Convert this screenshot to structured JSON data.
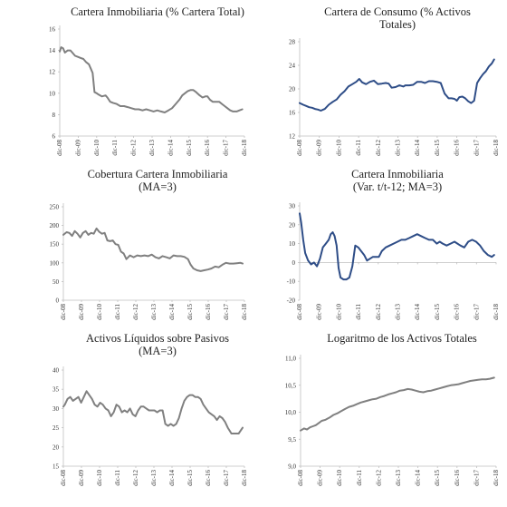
{
  "chart_data": [
    {
      "type": "line",
      "title": [
        "Cartera Inmobiliaria (% Cartera Total)"
      ],
      "x_labels": [
        "dic-08",
        "dic-09",
        "dic-10",
        "dic-11",
        "dic-12",
        "dic-13",
        "dic-14",
        "dic-15",
        "dic-16",
        "dic-17",
        "dic-18"
      ],
      "y_ticks": [
        "6",
        "8",
        "10",
        "12",
        "14",
        "16"
      ],
      "ylim": [
        6,
        16
      ],
      "color": "#808080",
      "series": [
        {
          "x": [
            2008.92,
            2009.0,
            2009.1,
            2009.2,
            2009.35,
            2009.5,
            2009.6,
            2009.75,
            2009.9,
            2010.05,
            2010.2,
            2010.35,
            2010.5,
            2010.6,
            2010.7,
            2010.8,
            2010.92,
            2011.0,
            2011.2,
            2011.4,
            2011.5,
            2011.65,
            2011.8,
            2012.0,
            2012.2,
            2012.4,
            2012.6,
            2012.8,
            2013.0,
            2013.2,
            2013.4,
            2013.6,
            2013.8,
            2014.0,
            2014.2,
            2014.4,
            2014.6,
            2014.8,
            2015.0,
            2015.2,
            2015.4,
            2015.55,
            2015.7,
            2015.85,
            2016.0,
            2016.15,
            2016.3,
            2016.5,
            2016.65,
            2016.8,
            2016.92,
            2017.05,
            2017.2,
            2017.4,
            2017.55,
            2017.7,
            2017.85,
            2018.0,
            2018.15,
            2018.3,
            2018.5,
            2018.65,
            2018.8
          ],
          "y": [
            13.9,
            14.3,
            14.2,
            13.8,
            14.0,
            14.0,
            13.8,
            13.5,
            13.4,
            13.3,
            13.2,
            12.9,
            12.7,
            12.3,
            11.9,
            10.1,
            10.0,
            9.9,
            9.7,
            9.8,
            9.6,
            9.2,
            9.1,
            9.0,
            8.8,
            8.8,
            8.7,
            8.6,
            8.5,
            8.5,
            8.4,
            8.5,
            8.4,
            8.3,
            8.4,
            8.3,
            8.2,
            8.4,
            8.6,
            9.0,
            9.4,
            9.8,
            10.0,
            10.2,
            10.3,
            10.3,
            10.1,
            9.8,
            9.6,
            9.7,
            9.7,
            9.4,
            9.2,
            9.2,
            9.2,
            9.0,
            8.8,
            8.6,
            8.4,
            8.3,
            8.3,
            8.4,
            8.5
          ]
        }
      ]
    },
    {
      "type": "line",
      "title": [
        "Cartera de Consumo (% Activos",
        "Totales)"
      ],
      "x_labels": [
        "dic-08",
        "dic-09",
        "dic-10",
        "dic-11",
        "dic-12",
        "dic-13",
        "dic-14",
        "dic-15",
        "dic-16",
        "dic-17",
        "dic-18"
      ],
      "y_ticks": [
        "12",
        "16",
        "20",
        "24",
        "28"
      ],
      "ylim": [
        12,
        28
      ],
      "color": "#2e4d87",
      "series": [
        {
          "x": [
            2008.92,
            2009.1,
            2009.25,
            2009.4,
            2009.55,
            2009.7,
            2009.85,
            2010.0,
            2010.2,
            2010.4,
            2010.6,
            2010.8,
            2011.0,
            2011.2,
            2011.4,
            2011.6,
            2011.8,
            2011.95,
            2012.1,
            2012.3,
            2012.5,
            2012.7,
            2012.9,
            2013.1,
            2013.3,
            2013.45,
            2013.6,
            2013.8,
            2014.0,
            2014.2,
            2014.3,
            2014.5,
            2014.7,
            2014.9,
            2015.1,
            2015.3,
            2015.5,
            2015.7,
            2015.9,
            2016.1,
            2016.3,
            2016.5,
            2016.65,
            2016.8,
            2016.92,
            2017.05,
            2017.2,
            2017.35,
            2017.5,
            2017.65,
            2017.8,
            2017.95,
            2018.1,
            2018.25,
            2018.4,
            2018.55,
            2018.7,
            2018.82
          ],
          "y": [
            17.6,
            17.3,
            17.1,
            16.9,
            16.8,
            16.6,
            16.5,
            16.3,
            16.6,
            17.3,
            17.8,
            18.2,
            19.0,
            19.6,
            20.4,
            20.8,
            21.2,
            21.7,
            21.1,
            20.8,
            21.2,
            21.4,
            20.8,
            20.9,
            21.0,
            20.9,
            20.2,
            20.3,
            20.6,
            20.4,
            20.6,
            20.6,
            20.7,
            21.2,
            21.2,
            21.0,
            21.3,
            21.3,
            21.2,
            21.0,
            19.2,
            18.4,
            18.4,
            18.3,
            18.0,
            18.6,
            18.7,
            18.4,
            17.9,
            17.6,
            18.0,
            21.0,
            21.8,
            22.5,
            23.0,
            23.8,
            24.3,
            25.0
          ]
        }
      ]
    },
    {
      "type": "line",
      "title": [
        "Cobertura Cartera Inmobiliaria",
        "(MA=3)"
      ],
      "x_labels": [
        "dic-08",
        "dic-09",
        "dic-10",
        "dic-11",
        "dic-12",
        "dic-13",
        "dic-14",
        "dic-15",
        "dic-16",
        "dic-17",
        "dic-18"
      ],
      "y_ticks": [
        "0",
        "50",
        "100",
        "150",
        "200",
        "250"
      ],
      "ylim": [
        0,
        250
      ],
      "color": "#808080",
      "series": [
        {
          "x": [
            2008.92,
            2009.1,
            2009.25,
            2009.4,
            2009.55,
            2009.7,
            2009.85,
            2010.0,
            2010.15,
            2010.3,
            2010.45,
            2010.6,
            2010.75,
            2010.9,
            2011.05,
            2011.2,
            2011.35,
            2011.5,
            2011.65,
            2011.8,
            2011.95,
            2012.1,
            2012.25,
            2012.4,
            2012.6,
            2012.8,
            2013.0,
            2013.2,
            2013.4,
            2013.6,
            2013.8,
            2014.0,
            2014.2,
            2014.4,
            2014.6,
            2014.8,
            2015.0,
            2015.2,
            2015.4,
            2015.6,
            2015.8,
            2015.95,
            2016.1,
            2016.3,
            2016.5,
            2016.7,
            2016.9,
            2017.1,
            2017.3,
            2017.5,
            2017.7,
            2017.9,
            2018.1,
            2018.3,
            2018.5,
            2018.7,
            2018.82
          ],
          "y": [
            175,
            182,
            180,
            172,
            185,
            178,
            168,
            180,
            185,
            175,
            180,
            178,
            192,
            183,
            178,
            180,
            160,
            158,
            160,
            150,
            148,
            130,
            125,
            110,
            120,
            115,
            120,
            118,
            120,
            118,
            122,
            115,
            112,
            118,
            115,
            112,
            120,
            118,
            118,
            116,
            110,
            95,
            85,
            80,
            78,
            80,
            82,
            85,
            90,
            88,
            95,
            100,
            98,
            98,
            99,
            100,
            98
          ]
        }
      ]
    },
    {
      "type": "line",
      "title": [
        "Cartera Inmobiliaria",
        "(Var. t/t-12; MA=3)"
      ],
      "x_labels": [
        "dic-08",
        "dic-09",
        "dic-10",
        "dic-11",
        "dic-12",
        "dic-13",
        "dic-14",
        "dic-15",
        "dic-16",
        "dic-17",
        "dic-18"
      ],
      "y_ticks": [
        "-20",
        "-10",
        "0",
        "10",
        "20",
        "30"
      ],
      "ylim": [
        -20,
        30
      ],
      "color": "#2e4d87",
      "series": [
        {
          "x": [
            2008.92,
            2009.0,
            2009.1,
            2009.2,
            2009.35,
            2009.5,
            2009.65,
            2009.8,
            2009.95,
            2010.1,
            2010.25,
            2010.4,
            2010.5,
            2010.6,
            2010.7,
            2010.8,
            2010.9,
            2011.0,
            2011.15,
            2011.3,
            2011.45,
            2011.6,
            2011.75,
            2011.9,
            2012.05,
            2012.2,
            2012.35,
            2012.5,
            2012.65,
            2012.8,
            2012.95,
            2013.1,
            2013.3,
            2013.5,
            2013.7,
            2013.9,
            2014.1,
            2014.3,
            2014.5,
            2014.7,
            2014.9,
            2015.1,
            2015.3,
            2015.5,
            2015.7,
            2015.9,
            2016.05,
            2016.2,
            2016.4,
            2016.6,
            2016.8,
            2016.95,
            2017.1,
            2017.3,
            2017.5,
            2017.7,
            2017.9,
            2018.1,
            2018.3,
            2018.5,
            2018.7,
            2018.82
          ],
          "y": [
            26,
            21,
            12,
            5,
            1,
            -1,
            0,
            -2,
            2,
            8,
            10,
            12,
            15,
            16,
            14,
            9,
            -3,
            -8,
            -9,
            -9,
            -8,
            -2,
            9,
            8,
            6,
            4,
            1,
            2,
            3,
            3,
            3,
            6,
            8,
            9,
            10,
            11,
            12,
            12,
            13,
            14,
            15,
            14,
            13,
            12,
            12,
            10,
            11,
            10,
            9,
            10,
            11,
            10,
            9,
            8,
            11,
            12,
            11,
            9,
            6,
            4,
            3,
            4
          ]
        }
      ]
    },
    {
      "type": "line",
      "title": [
        "Activos Líquidos sobre Pasivos",
        "(MA=3)"
      ],
      "x_labels": [
        "dic-08",
        "dic-09",
        "dic-10",
        "dic-11",
        "dic-12",
        "dic-13",
        "dic-14",
        "dic-15",
        "dic-16",
        "dic-17",
        "dic-18"
      ],
      "y_ticks": [
        "15",
        "20",
        "25",
        "30",
        "35",
        "40"
      ],
      "ylim": [
        15,
        40
      ],
      "color": "#808080",
      "series": [
        {
          "x": [
            2008.92,
            2009.0,
            2009.15,
            2009.3,
            2009.45,
            2009.6,
            2009.75,
            2009.9,
            2010.05,
            2010.2,
            2010.35,
            2010.5,
            2010.65,
            2010.8,
            2010.95,
            2011.1,
            2011.25,
            2011.4,
            2011.55,
            2011.7,
            2011.85,
            2012.0,
            2012.15,
            2012.3,
            2012.45,
            2012.6,
            2012.75,
            2012.9,
            2013.05,
            2013.2,
            2013.35,
            2013.5,
            2013.65,
            2013.8,
            2013.95,
            2014.1,
            2014.25,
            2014.4,
            2014.55,
            2014.7,
            2014.85,
            2015.0,
            2015.15,
            2015.3,
            2015.45,
            2015.6,
            2015.75,
            2015.9,
            2016.05,
            2016.2,
            2016.35,
            2016.5,
            2016.65,
            2016.8,
            2016.95,
            2017.1,
            2017.25,
            2017.4,
            2017.55,
            2017.7,
            2017.85,
            2018.0,
            2018.2,
            2018.4,
            2018.6,
            2018.82
          ],
          "y": [
            30.5,
            31.0,
            32.5,
            33.0,
            32.0,
            32.5,
            33.0,
            31.5,
            33.0,
            34.5,
            33.5,
            32.5,
            31.0,
            30.5,
            31.5,
            31.0,
            30.0,
            29.5,
            28.0,
            29.0,
            31.0,
            30.5,
            29.0,
            29.5,
            29.0,
            30.0,
            28.5,
            28.0,
            29.5,
            30.5,
            30.5,
            30.0,
            29.5,
            29.5,
            29.5,
            29.0,
            29.5,
            29.5,
            26.0,
            25.5,
            26.0,
            25.5,
            26.0,
            27.5,
            30.0,
            32.0,
            33.0,
            33.5,
            33.5,
            33.0,
            33.0,
            32.5,
            31.0,
            30.0,
            29.0,
            28.5,
            28.0,
            27.0,
            28.0,
            27.5,
            26.5,
            25.0,
            23.5,
            23.5,
            23.5,
            25.0
          ]
        }
      ]
    },
    {
      "type": "line",
      "title": [
        "Logaritmo de los Activos Totales"
      ],
      "x_labels": [
        "dic-08",
        "dic-09",
        "dic-10",
        "dic-11",
        "dic-12",
        "dic-13",
        "dic-14",
        "dic-15",
        "dic-16",
        "dic-17",
        "dic-18"
      ],
      "y_ticks": [
        "9,0",
        "9,5",
        "10,0",
        "10,5",
        "11,0"
      ],
      "ylim": [
        9.0,
        11.0
      ],
      "color": "#808080",
      "series": [
        {
          "x": [
            2008.92,
            2009.1,
            2009.25,
            2009.4,
            2009.55,
            2009.7,
            2009.85,
            2010.0,
            2010.2,
            2010.4,
            2010.6,
            2010.8,
            2011.0,
            2011.2,
            2011.4,
            2011.6,
            2011.8,
            2012.0,
            2012.2,
            2012.4,
            2012.6,
            2012.8,
            2013.0,
            2013.2,
            2013.4,
            2013.6,
            2013.8,
            2014.0,
            2014.2,
            2014.4,
            2014.6,
            2014.8,
            2015.0,
            2015.2,
            2015.4,
            2015.6,
            2015.8,
            2016.0,
            2016.2,
            2016.4,
            2016.6,
            2016.8,
            2017.0,
            2017.2,
            2017.4,
            2017.6,
            2017.8,
            2018.0,
            2018.2,
            2018.4,
            2018.6,
            2018.82
          ],
          "y": [
            9.66,
            9.7,
            9.68,
            9.72,
            9.74,
            9.76,
            9.8,
            9.84,
            9.86,
            9.9,
            9.95,
            9.98,
            10.02,
            10.06,
            10.1,
            10.12,
            10.15,
            10.18,
            10.2,
            10.22,
            10.24,
            10.25,
            10.28,
            10.3,
            10.33,
            10.35,
            10.37,
            10.4,
            10.41,
            10.43,
            10.42,
            10.4,
            10.38,
            10.37,
            10.39,
            10.4,
            10.42,
            10.44,
            10.46,
            10.48,
            10.5,
            10.51,
            10.52,
            10.54,
            10.56,
            10.58,
            10.59,
            10.6,
            10.61,
            10.61,
            10.62,
            10.64
          ]
        }
      ]
    }
  ]
}
